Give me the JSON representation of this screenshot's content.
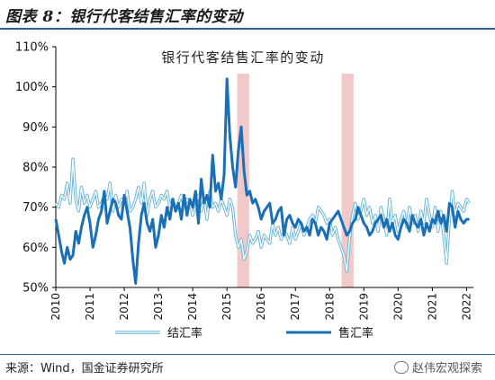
{
  "figure_title": "图表 8：银行代客结售汇率的变动",
  "source_text": "来源：Wind，国金证券研究所",
  "watermark_text": "赵伟宏观探索",
  "chart_data": {
    "type": "line",
    "title": "银行代客结售汇率的变动",
    "xlabel": "",
    "ylabel": "",
    "xlim": [
      2010,
      2022.2
    ],
    "ylim": [
      50,
      110
    ],
    "yticks": [
      "50%",
      "60%",
      "70%",
      "80%",
      "90%",
      "100%",
      "110%"
    ],
    "yticks_values": [
      50,
      60,
      70,
      80,
      90,
      100,
      110
    ],
    "xticks": [
      "2010",
      "2011",
      "2012",
      "2013",
      "2014",
      "2015",
      "2016",
      "2017",
      "2018",
      "2019",
      "2020",
      "2021",
      "2022"
    ],
    "xticks_values": [
      2010,
      2011,
      2012,
      2013,
      2014,
      2015,
      2016,
      2017,
      2018,
      2019,
      2020,
      2021,
      2022
    ],
    "shaded_regions": [
      [
        2015.3,
        2015.65
      ],
      [
        2018.35,
        2018.7
      ]
    ],
    "shade_color": "#f2c9c9",
    "legend_position": "bottom",
    "series": [
      {
        "name": "结汇率",
        "color": "#6fb8d6",
        "style": "double-line",
        "x": [
          2010.0,
          2010.083,
          2010.167,
          2010.25,
          2010.333,
          2010.417,
          2010.5,
          2010.583,
          2010.667,
          2010.75,
          2010.833,
          2010.917,
          2011.0,
          2011.083,
          2011.167,
          2011.25,
          2011.333,
          2011.417,
          2011.5,
          2011.583,
          2011.667,
          2011.75,
          2011.833,
          2011.917,
          2012.0,
          2012.083,
          2012.167,
          2012.25,
          2012.333,
          2012.417,
          2012.5,
          2012.583,
          2012.667,
          2012.75,
          2012.833,
          2012.917,
          2013.0,
          2013.083,
          2013.167,
          2013.25,
          2013.333,
          2013.417,
          2013.5,
          2013.583,
          2013.667,
          2013.75,
          2013.833,
          2013.917,
          2014.0,
          2014.083,
          2014.167,
          2014.25,
          2014.333,
          2014.417,
          2014.5,
          2014.583,
          2014.667,
          2014.75,
          2014.833,
          2014.917,
          2015.0,
          2015.083,
          2015.167,
          2015.25,
          2015.333,
          2015.417,
          2015.5,
          2015.583,
          2015.667,
          2015.75,
          2015.833,
          2015.917,
          2016.0,
          2016.083,
          2016.167,
          2016.25,
          2016.333,
          2016.417,
          2016.5,
          2016.583,
          2016.667,
          2016.75,
          2016.833,
          2016.917,
          2017.0,
          2017.083,
          2017.167,
          2017.25,
          2017.333,
          2017.417,
          2017.5,
          2017.583,
          2017.667,
          2017.75,
          2017.833,
          2017.917,
          2018.0,
          2018.083,
          2018.167,
          2018.25,
          2018.333,
          2018.417,
          2018.5,
          2018.583,
          2018.667,
          2018.75,
          2018.833,
          2018.917,
          2019.0,
          2019.083,
          2019.167,
          2019.25,
          2019.333,
          2019.417,
          2019.5,
          2019.583,
          2019.667,
          2019.75,
          2019.833,
          2019.917,
          2020.0,
          2020.083,
          2020.167,
          2020.25,
          2020.333,
          2020.417,
          2020.5,
          2020.583,
          2020.667,
          2020.75,
          2020.833,
          2020.917,
          2021.0,
          2021.083,
          2021.167,
          2021.25,
          2021.333,
          2021.417,
          2021.5,
          2021.583,
          2021.667,
          2021.75,
          2021.833,
          2021.917,
          2022.0,
          2022.083
        ],
        "values": [
          71,
          70,
          73,
          72,
          76,
          71,
          82,
          72,
          69,
          75,
          71,
          73,
          70,
          72,
          74,
          70,
          71,
          73,
          72,
          76,
          69,
          73,
          70,
          72,
          71,
          74,
          69,
          70,
          72,
          75,
          71,
          76,
          68,
          72,
          74,
          70,
          71,
          73,
          72,
          74,
          70,
          72,
          69,
          71,
          73,
          70,
          72,
          71,
          68,
          70,
          73,
          69,
          72,
          67,
          74,
          70,
          71,
          69,
          72,
          70,
          68,
          72,
          70,
          63,
          60,
          62,
          57,
          59,
          63,
          61,
          62,
          64,
          60,
          63,
          62,
          61,
          66,
          63,
          65,
          62,
          64,
          63,
          61,
          65,
          62,
          64,
          66,
          63,
          65,
          67,
          68,
          66,
          70,
          69,
          68,
          66,
          67,
          63,
          65,
          62,
          60,
          58,
          54,
          62,
          68,
          71,
          67,
          69,
          72,
          68,
          70,
          66,
          68,
          64,
          70,
          67,
          63,
          72,
          66,
          68,
          64,
          67,
          69,
          65,
          70,
          66,
          68,
          64,
          69,
          66,
          72,
          68,
          65,
          70,
          64,
          69,
          63,
          56,
          67,
          74,
          68,
          71,
          70,
          69,
          72,
          71
        ]
      },
      {
        "name": "售汇率",
        "color": "#1a6fb5",
        "style": "thick",
        "x": [
          2010.0,
          2010.083,
          2010.167,
          2010.25,
          2010.333,
          2010.417,
          2010.5,
          2010.583,
          2010.667,
          2010.75,
          2010.833,
          2010.917,
          2011.0,
          2011.083,
          2011.167,
          2011.25,
          2011.333,
          2011.417,
          2011.5,
          2011.583,
          2011.667,
          2011.75,
          2011.833,
          2011.917,
          2012.0,
          2012.083,
          2012.167,
          2012.25,
          2012.333,
          2012.417,
          2012.5,
          2012.583,
          2012.667,
          2012.75,
          2012.833,
          2012.917,
          2013.0,
          2013.083,
          2013.167,
          2013.25,
          2013.333,
          2013.417,
          2013.5,
          2013.583,
          2013.667,
          2013.75,
          2013.833,
          2013.917,
          2014.0,
          2014.083,
          2014.167,
          2014.25,
          2014.333,
          2014.417,
          2014.5,
          2014.583,
          2014.667,
          2014.75,
          2014.833,
          2014.917,
          2015.0,
          2015.083,
          2015.167,
          2015.25,
          2015.333,
          2015.417,
          2015.5,
          2015.583,
          2015.667,
          2015.75,
          2015.833,
          2015.917,
          2016.0,
          2016.083,
          2016.167,
          2016.25,
          2016.333,
          2016.417,
          2016.5,
          2016.583,
          2016.667,
          2016.75,
          2016.833,
          2016.917,
          2017.0,
          2017.083,
          2017.167,
          2017.25,
          2017.333,
          2017.417,
          2017.5,
          2017.583,
          2017.667,
          2017.75,
          2017.833,
          2017.917,
          2018.0,
          2018.083,
          2018.167,
          2018.25,
          2018.333,
          2018.417,
          2018.5,
          2018.583,
          2018.667,
          2018.75,
          2018.833,
          2018.917,
          2019.0,
          2019.083,
          2019.167,
          2019.25,
          2019.333,
          2019.417,
          2019.5,
          2019.583,
          2019.667,
          2019.75,
          2019.833,
          2019.917,
          2020.0,
          2020.083,
          2020.167,
          2020.25,
          2020.333,
          2020.417,
          2020.5,
          2020.583,
          2020.667,
          2020.75,
          2020.833,
          2020.917,
          2021.0,
          2021.083,
          2021.167,
          2021.25,
          2021.333,
          2021.417,
          2021.5,
          2021.583,
          2021.667,
          2021.75,
          2021.833,
          2021.917,
          2022.0,
          2022.083
        ],
        "values": [
          67,
          63,
          59,
          56,
          60,
          57,
          58,
          64,
          61,
          65,
          68,
          70,
          66,
          60,
          63,
          67,
          69,
          74,
          66,
          69,
          72,
          71,
          68,
          67,
          73,
          69,
          65,
          57,
          51,
          61,
          68,
          71,
          66,
          64,
          67,
          60,
          63,
          68,
          65,
          70,
          67,
          72,
          69,
          71,
          67,
          73,
          68,
          72,
          70,
          74,
          66,
          77,
          71,
          73,
          70,
          83,
          74,
          76,
          72,
          78,
          102,
          88,
          80,
          75,
          84,
          90,
          79,
          73,
          74,
          71,
          72,
          70,
          67,
          69,
          70,
          71,
          66,
          67,
          69,
          70,
          63,
          67,
          68,
          66,
          65,
          67,
          66,
          64,
          65,
          63,
          67,
          66,
          63,
          65,
          64,
          62,
          66,
          67,
          68,
          69,
          67,
          65,
          63,
          64,
          66,
          67,
          70,
          68,
          66,
          65,
          63,
          64,
          66,
          67,
          68,
          65,
          67,
          64,
          66,
          63,
          62,
          65,
          67,
          66,
          64,
          68,
          66,
          65,
          67,
          63,
          66,
          64,
          67,
          66,
          69,
          66,
          68,
          64,
          71,
          70,
          65,
          69,
          67,
          66,
          67,
          67
        ]
      }
    ]
  }
}
